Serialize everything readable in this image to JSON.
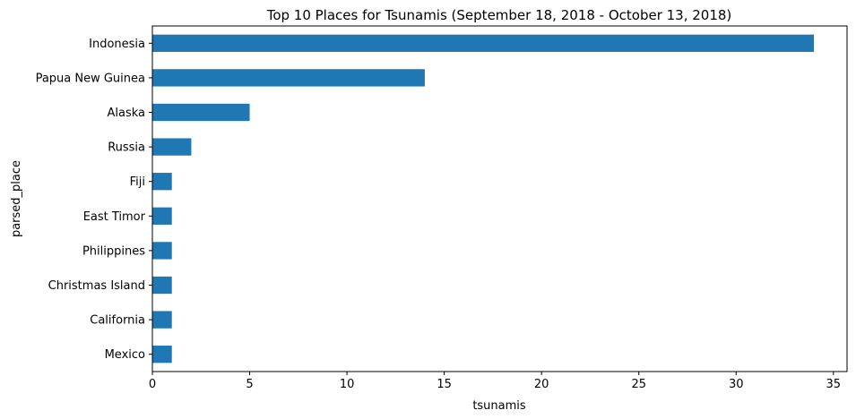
{
  "chart_data": {
    "type": "bar",
    "orientation": "horizontal",
    "title": "Top 10 Places for Tsunamis (September 18, 2018 - October 13, 2018)",
    "xlabel": "tsunamis",
    "ylabel": "parsed_place",
    "categories": [
      "Indonesia",
      "Papua New Guinea",
      "Alaska",
      "Russia",
      "Fiji",
      "East Timor",
      "Philippines",
      "Christmas Island",
      "California",
      "Mexico"
    ],
    "values": [
      34,
      14,
      5,
      2,
      1,
      1,
      1,
      1,
      1,
      1
    ],
    "xlim": [
      0,
      35.7
    ],
    "xticks": [
      0,
      5,
      10,
      15,
      20,
      25,
      30,
      35
    ],
    "grid": false,
    "bar_color": "#1f77b4"
  }
}
